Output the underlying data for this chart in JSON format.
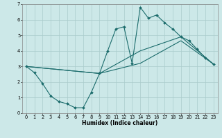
{
  "xlabel": "Humidex (Indice chaleur)",
  "background_color": "#cce8e8",
  "grid_color": "#aacccc",
  "line_color": "#1a6b6b",
  "xlim": [
    -0.5,
    23.5
  ],
  "ylim": [
    0,
    7
  ],
  "xticks": [
    0,
    1,
    2,
    3,
    4,
    5,
    6,
    7,
    8,
    9,
    10,
    11,
    12,
    13,
    14,
    15,
    16,
    17,
    18,
    19,
    20,
    21,
    22,
    23
  ],
  "yticks": [
    0,
    1,
    2,
    3,
    4,
    5,
    6,
    7
  ],
  "series1_x": [
    0,
    1,
    2,
    3,
    4,
    5,
    6,
    7,
    8,
    9,
    10,
    11,
    12,
    13,
    14,
    15,
    16,
    17,
    18,
    19,
    20,
    21,
    22,
    23
  ],
  "series1_y": [
    3.0,
    2.6,
    1.9,
    1.1,
    0.75,
    0.6,
    0.35,
    0.35,
    1.35,
    2.55,
    4.0,
    5.4,
    5.55,
    3.2,
    6.8,
    6.1,
    6.3,
    5.8,
    5.4,
    4.9,
    4.65,
    4.1,
    3.55,
    3.15
  ],
  "series2_x": [
    0,
    9,
    14,
    19,
    23
  ],
  "series2_y": [
    3.0,
    2.55,
    4.0,
    4.9,
    3.15
  ],
  "series3_x": [
    0,
    9,
    14,
    19,
    23
  ],
  "series3_y": [
    3.0,
    2.55,
    3.2,
    4.65,
    3.15
  ],
  "xlabel_fontsize": 5.5,
  "tick_fontsize": 4.8
}
